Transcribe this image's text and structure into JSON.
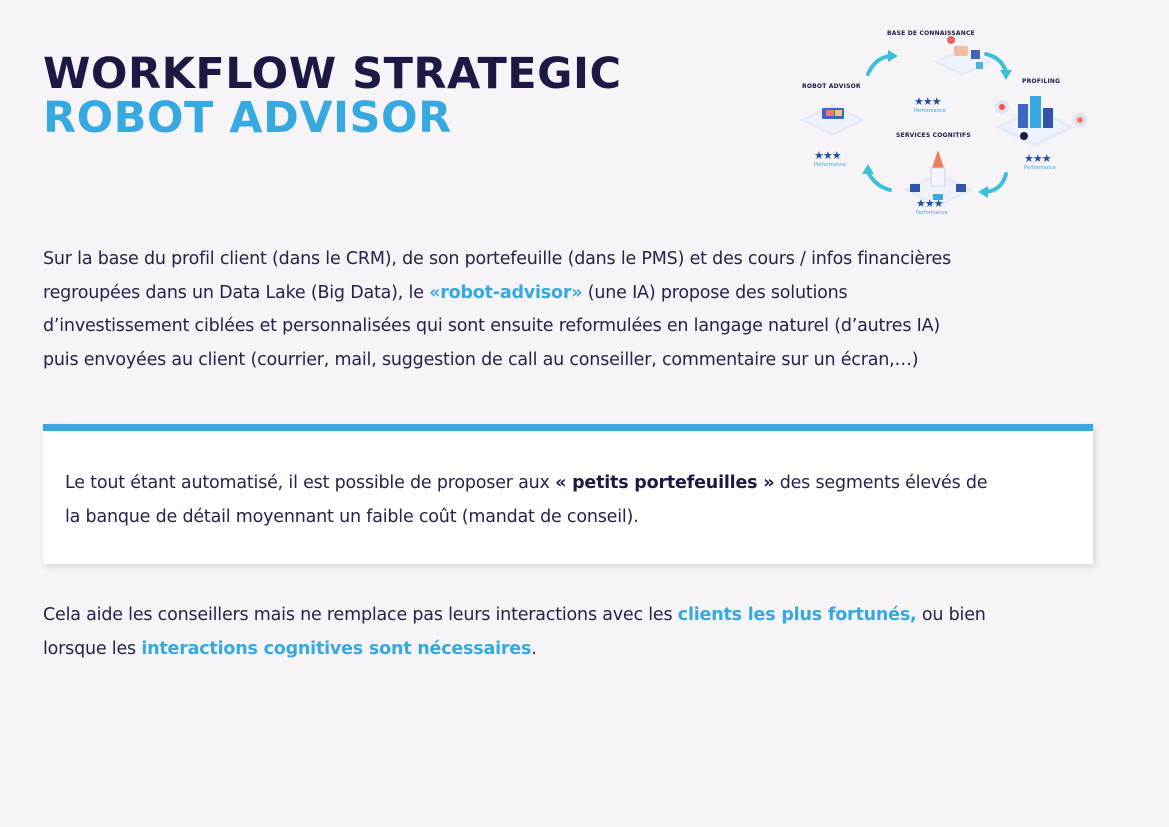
{
  "title": {
    "line1": "WORKFLOW STRATEGIC",
    "line2": "ROBOT ADVISOR"
  },
  "diagram": {
    "nodes": {
      "top": "BASE DE CONNAISSANCE",
      "left": "ROBOT ADVISOR",
      "right": "PROFILING",
      "center": "SERVICES COGNITIFS"
    },
    "stars": "★★★",
    "performance_label": "Performance"
  },
  "paragraph1": {
    "lines": [
      "Sur la base du profil client (dans le CRM), de son portefeuille (dans le PMS) et des cours / infos financières",
      "regroupées dans un Data Lake (Big Data), le ",
      "«robot-advisor»",
      " (une IA) propose des solutions",
      "d’investissement ciblées et personnalisées qui sont ensuite reformulées en langage naturel (d’autres IA)",
      "puis envoyées au client (courrier, mail, suggestion de call au conseiller, commentaire sur un écran,…)"
    ]
  },
  "callout": {
    "pre": "Le tout étant automatisé, il est possible de proposer aux ",
    "bold": "« petits portefeuilles »",
    "post": " des segments élevés de",
    "line2": "la banque de détail moyennant un faible coût (mandat de conseil)."
  },
  "paragraph3": {
    "pre": "Cela aide les conseillers mais ne remplace pas leurs interactions avec les ",
    "hl1": "clients les plus fortunés,",
    "mid": " ou bien",
    "line2_pre": "lorsque les ",
    "hl2": "interactions cognitives sont nécessaires",
    "end": "."
  },
  "colors": {
    "navy": "#1c1a45",
    "accent": "#36a9e1",
    "background": "#f6f4f6"
  }
}
